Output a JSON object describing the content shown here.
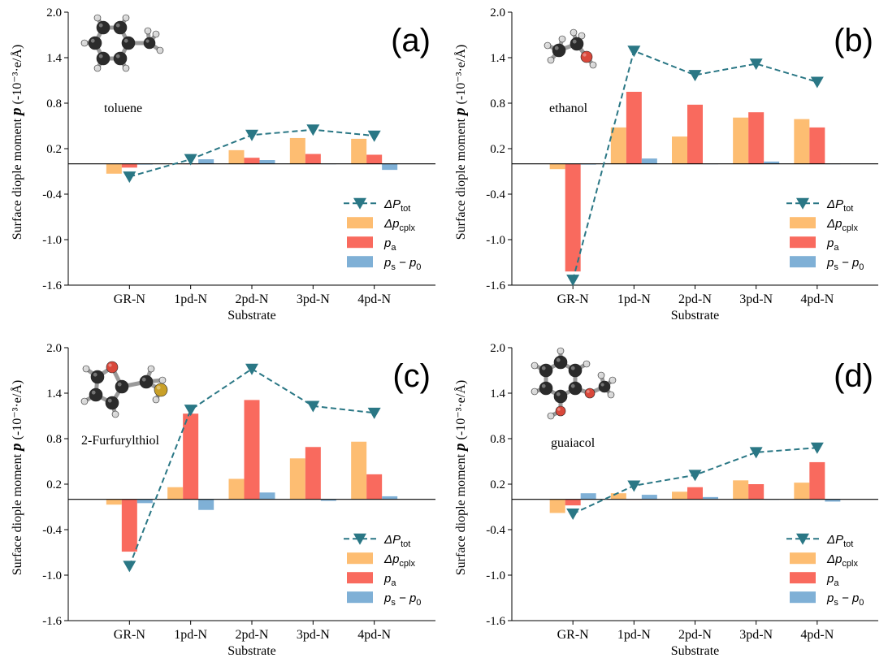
{
  "legend_items": [
    {
      "key": "ptot",
      "kind": "line",
      "sym": "ΔP",
      "sub": "tot",
      "symItalic": true
    },
    {
      "key": "pcplx",
      "kind": "bar",
      "sym": "Δp",
      "sub": "cplx",
      "symItalic": true
    },
    {
      "key": "pa",
      "kind": "bar",
      "sym": "p",
      "sub": "a",
      "symItalic": true
    },
    {
      "key": "ps_p0",
      "kind": "bar",
      "sym": "p",
      "sub": "s",
      "tail": " − p",
      "tailSub": "0",
      "symItalic": true
    }
  ],
  "colors": {
    "ptot": "#2a7785",
    "pcplx": "#fdbd72",
    "pa": "#f96a5e",
    "ps_p0": "#7fb0d6",
    "axis": "#000000",
    "zero": "#000000"
  },
  "chart_data": [
    {
      "panel": "(a)",
      "molecule": "toluene",
      "type": "bar",
      "xlabel": "Substrate",
      "ylabel": "Surface diople moment p (-10⁻³·e/Å)",
      "categories": [
        "GR-N",
        "1pd-N",
        "2pd-N",
        "3pd-N",
        "4pd-N"
      ],
      "ylim": [
        -1.6,
        2.0
      ],
      "yticks": [
        "2.0",
        "1.4",
        "0.8",
        "0.2",
        "-0.4",
        "-1.0",
        "-1.6"
      ],
      "series": [
        {
          "key": "ptot",
          "values": [
            -0.17,
            0.06,
            0.38,
            0.45,
            0.37
          ]
        },
        {
          "key": "pcplx",
          "values": [
            -0.13,
            0.0,
            0.18,
            0.34,
            0.33
          ]
        },
        {
          "key": "pa",
          "values": [
            -0.05,
            0.0,
            0.08,
            0.13,
            0.12
          ]
        },
        {
          "key": "ps_p0",
          "values": [
            -0.01,
            0.06,
            0.05,
            0.0,
            -0.08
          ]
        }
      ]
    },
    {
      "panel": "(b)",
      "molecule": "ethanol",
      "type": "bar",
      "xlabel": "Substrate",
      "ylabel": "Surface diople moment p (-10⁻³·e/Å)",
      "categories": [
        "GR-N",
        "1pd-N",
        "2pd-N",
        "3pd-N",
        "4pd-N"
      ],
      "ylim": [
        -1.6,
        2.0
      ],
      "yticks": [
        "2.0",
        "1.4",
        "0.8",
        "0.2",
        "-0.4",
        "-1.0",
        "-1.6"
      ],
      "series": [
        {
          "key": "ptot",
          "values": [
            -1.53,
            1.49,
            1.17,
            1.32,
            1.08
          ]
        },
        {
          "key": "pcplx",
          "values": [
            -0.07,
            0.48,
            0.36,
            0.61,
            0.59
          ]
        },
        {
          "key": "pa",
          "values": [
            -1.42,
            0.95,
            0.78,
            0.68,
            0.48
          ]
        },
        {
          "key": "ps_p0",
          "values": [
            -0.01,
            0.07,
            0.0,
            0.03,
            0.0
          ]
        }
      ]
    },
    {
      "panel": "(c)",
      "molecule": "2-Furfurylthiol",
      "type": "bar",
      "xlabel": "Substrate",
      "ylabel": "Surface diople moment p (-10⁻³·e/Å)",
      "categories": [
        "GR-N",
        "1pd-N",
        "2pd-N",
        "3pd-N",
        "4pd-N"
      ],
      "ylim": [
        -1.6,
        2.0
      ],
      "yticks": [
        "2.0",
        "1.4",
        "0.8",
        "0.2",
        "-0.4",
        "-1.0",
        "-1.6"
      ],
      "series": [
        {
          "key": "ptot",
          "values": [
            -0.88,
            1.18,
            1.72,
            1.23,
            1.14
          ]
        },
        {
          "key": "pcplx",
          "values": [
            -0.07,
            0.16,
            0.27,
            0.54,
            0.76
          ]
        },
        {
          "key": "pa",
          "values": [
            -0.69,
            1.13,
            1.31,
            0.69,
            0.33
          ]
        },
        {
          "key": "ps_p0",
          "values": [
            -0.05,
            -0.14,
            0.09,
            -0.02,
            0.04
          ]
        }
      ]
    },
    {
      "panel": "(d)",
      "molecule": "guaiacol",
      "type": "bar",
      "xlabel": "Substrate",
      "ylabel": "Surface diople moment p (-10⁻³·e/Å)",
      "categories": [
        "GR-N",
        "1pd-N",
        "2pd-N",
        "3pd-N",
        "4pd-N"
      ],
      "ylim": [
        -1.6,
        2.0
      ],
      "yticks": [
        "2.0",
        "1.4",
        "0.8",
        "0.2",
        "-0.4",
        "-1.0",
        "-1.6"
      ],
      "series": [
        {
          "key": "ptot",
          "values": [
            -0.19,
            0.18,
            0.32,
            0.62,
            0.68
          ]
        },
        {
          "key": "pcplx",
          "values": [
            -0.18,
            0.08,
            0.1,
            0.25,
            0.22
          ]
        },
        {
          "key": "pa",
          "values": [
            -0.08,
            0.0,
            0.16,
            0.2,
            0.49
          ]
        },
        {
          "key": "ps_p0",
          "values": [
            0.08,
            0.06,
            0.03,
            0.0,
            -0.03
          ]
        }
      ]
    }
  ]
}
